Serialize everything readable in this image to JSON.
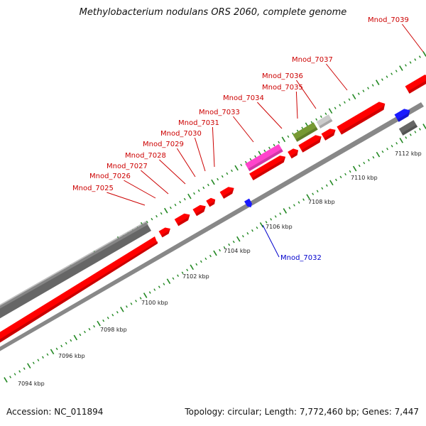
{
  "title": "Methylobacterium nodulans ORS 2060, complete genome",
  "footer": {
    "accession": "Accession: NC_011894",
    "topology": "Topology: circular; Length: 7,772,460 bp; Genes: 7,447"
  },
  "scale": {
    "ticks": [
      "7094 kbp",
      "7096 kbp",
      "7098 kbp",
      "7100 kbp",
      "7102 kbp",
      "7104 kbp",
      "7106 kbp",
      "7108 kbp",
      "7110 kbp",
      "7112 kbp"
    ]
  },
  "labels": {
    "forward": [
      "Mnod_7025",
      "Mnod_7026",
      "Mnod_7027",
      "Mnod_7028",
      "Mnod_7029",
      "Mnod_7030",
      "Mnod_7031",
      "Mnod_7033",
      "Mnod_7034",
      "Mnod_7035",
      "Mnod_7036",
      "Mnod_7037",
      "Mnod_7039"
    ],
    "reverse": [
      "Mnod_7032"
    ]
  },
  "colors": {
    "cds": "#ff0000",
    "cds_dark": "#c80000",
    "rna": "#ff44cc",
    "misc": "#779933",
    "pseudo": "#cccccc",
    "reverse_gene": "#1a1aff",
    "other": "#666666",
    "tick": "#228822",
    "forward_label": "#cc0000",
    "reverse_label": "#0000cc",
    "backbone": "#888888"
  }
}
